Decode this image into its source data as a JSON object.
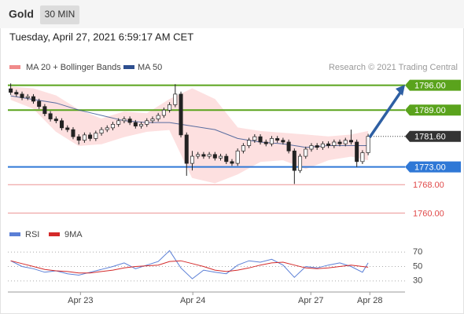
{
  "header": {
    "instrument": "Gold",
    "timeframe": "30 MIN"
  },
  "timestamp": "Tuesday, April 27, 2021 6:59:17 AM CET",
  "chart_data": [
    {
      "type": "candlestick",
      "source": "Research © 2021 Trading Central",
      "up_color": "#ffffff",
      "down_color": "#222222",
      "open": [
        1795,
        1794,
        1793.5,
        1792.5,
        1792.8,
        1791.5,
        1790,
        1788,
        1786.5,
        1786,
        1784,
        1783.5,
        1781.5,
        1780.5,
        1782,
        1781,
        1782.5,
        1783.5,
        1784,
        1785,
        1786,
        1786.5,
        1785.5,
        1784.5,
        1785,
        1786,
        1786.5,
        1787.5,
        1789,
        1790.5,
        1793.5,
        1782,
        1774,
        1776,
        1776.5,
        1776,
        1776.5,
        1775.5,
        1776,
        1774.5,
        1774,
        1777.5,
        1779,
        1780.5,
        1781.5,
        1780,
        1779.5,
        1781,
        1780.5,
        1780,
        1777.5,
        1772,
        1776,
        1778,
        1779,
        1778.5,
        1779.5,
        1779,
        1780,
        1779.5,
        1780.5,
        1780,
        1774.5,
        1777
      ],
      "high": [
        1796.5,
        1794.7,
        1794.2,
        1793.5,
        1793.5,
        1792.2,
        1790.7,
        1788.7,
        1787.2,
        1786.7,
        1784.7,
        1784.2,
        1782.2,
        1782.7,
        1782.7,
        1783.2,
        1784.2,
        1784.7,
        1785.7,
        1786.7,
        1787.2,
        1787.2,
        1786.2,
        1785.7,
        1786.7,
        1787.2,
        1788.2,
        1789.7,
        1791.2,
        1796.3,
        1794.2,
        1782.7,
        1777.5,
        1777.2,
        1777.2,
        1777.2,
        1777.2,
        1776.7,
        1776.7,
        1775.2,
        1778.2,
        1779.7,
        1781.2,
        1782.2,
        1782.2,
        1780.7,
        1781.7,
        1781.7,
        1781.2,
        1780.7,
        1778.2,
        1776.7,
        1778.7,
        1779.7,
        1779.7,
        1780.2,
        1780.2,
        1780.7,
        1780.7,
        1781.2,
        1783.5,
        1780.7,
        1777.7,
        1782.3
      ],
      "low": [
        1793.3,
        1792.8,
        1791.8,
        1791.8,
        1790.8,
        1789.3,
        1787.3,
        1785.8,
        1785.3,
        1783.3,
        1782.8,
        1780.8,
        1779.3,
        1779.8,
        1780.3,
        1780.3,
        1781.8,
        1782.8,
        1783.3,
        1784.3,
        1785.3,
        1784.8,
        1783.8,
        1783.8,
        1784.3,
        1785.3,
        1785.8,
        1786.8,
        1788.3,
        1789.8,
        1781.3,
        1770.5,
        1772,
        1775.3,
        1775.3,
        1775.3,
        1774.8,
        1774.8,
        1773.8,
        1773.3,
        1773.3,
        1776.8,
        1778.3,
        1779.8,
        1779.3,
        1778.8,
        1778.8,
        1779.8,
        1779.3,
        1776.8,
        1768.2,
        1771.3,
        1775.3,
        1777.3,
        1777.8,
        1777.8,
        1778.3,
        1778.3,
        1778.8,
        1778.8,
        1779.3,
        1773,
        1773.8,
        1776.3
      ],
      "close": [
        1794,
        1793.5,
        1792.5,
        1792.8,
        1791.5,
        1790,
        1788,
        1786.5,
        1786,
        1784,
        1783.5,
        1781.5,
        1780.5,
        1782,
        1781,
        1782.5,
        1783.5,
        1784,
        1785,
        1786,
        1786.5,
        1785.5,
        1784.5,
        1785,
        1786,
        1786.5,
        1787.5,
        1789,
        1790.5,
        1793.5,
        1782,
        1774,
        1776,
        1776.5,
        1776,
        1776.5,
        1775.5,
        1776,
        1774.5,
        1774,
        1777.5,
        1779,
        1780.5,
        1781.5,
        1780,
        1779.5,
        1781,
        1780.5,
        1780,
        1777.5,
        1772,
        1776,
        1778,
        1779,
        1778.5,
        1779.5,
        1779,
        1780,
        1779.5,
        1780.5,
        1780,
        1774.5,
        1777,
        1781.6
      ],
      "bands": {
        "name": "MA 20 + Bollinger Bands",
        "color": "#f08a8a",
        "fill": "#fde0e0",
        "x": [
          0,
          4,
          8,
          12,
          16,
          20,
          24,
          28,
          32,
          36,
          40,
          44,
          48,
          52,
          56,
          60,
          63
        ],
        "upper": [
          1795.5,
          1795,
          1793,
          1789,
          1786.5,
          1788.5,
          1788,
          1792,
          1795,
          1792,
          1784,
          1783,
          1782.5,
          1782,
          1781.5,
          1782,
          1783
        ],
        "lower": [
          1792,
          1789.5,
          1783,
          1779,
          1779.5,
          1781.5,
          1783,
          1783.5,
          1770,
          1768.5,
          1771,
          1774.5,
          1775,
          1772.5,
          1775,
          1776,
          1775
        ]
      },
      "ma": {
        "name": "MA 50",
        "color": "#2e4f8f",
        "x": [
          0,
          4,
          8,
          12,
          16,
          20,
          24,
          28,
          32,
          36,
          40,
          44,
          48,
          52,
          56,
          60,
          63
        ],
        "values": [
          1793,
          1792,
          1791,
          1789,
          1787.5,
          1786,
          1785.5,
          1785.5,
          1784.5,
          1783.5,
          1781,
          1780,
          1779.5,
          1778.5,
          1779,
          1779,
          1779
        ]
      },
      "levels": [
        {
          "value": 1796,
          "label": "1796.00",
          "color": "#5aa31c",
          "line": "solid"
        },
        {
          "value": 1789,
          "label": "1789.00",
          "color": "#5aa31c",
          "line": "solid"
        },
        {
          "value": 1781.6,
          "label": "1781.60",
          "color": "#333333",
          "line": "dotted"
        },
        {
          "value": 1773,
          "label": "1773.00",
          "color": "#2f78d6",
          "line": "solid"
        },
        {
          "value": 1768,
          "label": "1768.00",
          "color": "#e04a4a",
          "line": "thin"
        },
        {
          "value": 1760,
          "label": "1760.00",
          "color": "#e04a4a",
          "line": "thin"
        }
      ],
      "xlim": [
        -0.5,
        69.5
      ],
      "ylim": [
        1757,
        1799
      ]
    },
    {
      "type": "line",
      "x": [
        0,
        2,
        4,
        6,
        8,
        10,
        12,
        14,
        16,
        18,
        20,
        22,
        24,
        26,
        28,
        30,
        32,
        34,
        36,
        38,
        40,
        42,
        44,
        46,
        48,
        50,
        52,
        54,
        56,
        58,
        60,
        62,
        63
      ],
      "series": [
        {
          "name": "RSI",
          "color": "#5b7fd6",
          "values": [
            58,
            50,
            47,
            42,
            44,
            40,
            38,
            42,
            46,
            50,
            55,
            47,
            52,
            57,
            72,
            48,
            33,
            45,
            42,
            40,
            52,
            58,
            56,
            60,
            52,
            35,
            50,
            48,
            52,
            55,
            50,
            42,
            55
          ]
        },
        {
          "name": "9MA",
          "color": "#d42a2a",
          "values": [
            58,
            54,
            50,
            46,
            44,
            43,
            41,
            41,
            43,
            45,
            48,
            50,
            51,
            52,
            57,
            58,
            54,
            50,
            45,
            43,
            45,
            48,
            52,
            55,
            56,
            52,
            48,
            47,
            48,
            50,
            52,
            50,
            49
          ]
        }
      ],
      "xlim": [
        -0.5,
        69.5
      ],
      "ylim": [
        20,
        80
      ],
      "yticks": [
        30,
        50,
        70
      ],
      "xticks": [
        {
          "value": 12.3,
          "label": "Apr 23"
        },
        {
          "value": 32.1,
          "label": "Apr 24"
        },
        {
          "value": 52.9,
          "label": "Apr 27"
        },
        {
          "value": 63.3,
          "label": "Apr 28"
        }
      ]
    }
  ]
}
